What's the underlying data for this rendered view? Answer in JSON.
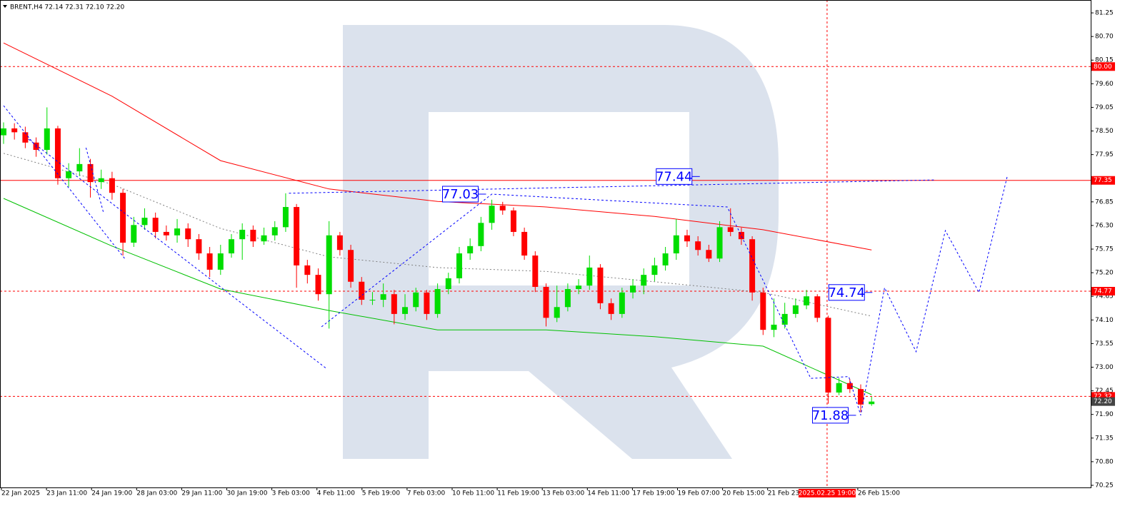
{
  "chart_data": {
    "type": "candlestick",
    "header": "BRENT,H4  72.14 72.31 72.10 72.20",
    "up_color": "#00dd00",
    "down_color": "#ff0000",
    "ylim": [
      70.2,
      81.55
    ],
    "yticks": [
      81.25,
      {
        "value": 80.7,
        "label": "80.70"
      },
      80.15,
      {
        "value": 79.6,
        "label": "79.60"
      },
      79.05,
      {
        "value": 78.5,
        "label": "78.50"
      },
      77.95,
      76.85,
      {
        "value": 76.3,
        "label": "76.30"
      },
      75.75,
      {
        "value": 75.2,
        "label": "75.20"
      },
      74.65,
      {
        "value": 74.1,
        "label": "74.10"
      },
      73.55,
      {
        "value": 73,
        "label": "73.00"
      },
      72.45,
      {
        "value": 71.9,
        "label": "71.90"
      },
      71.35,
      {
        "value": 70.8,
        "label": "70.80"
      },
      70.25
    ],
    "xtick_labels": [
      "22 Jan 2025",
      "23 Jan 11:00",
      "24 Jan 19:00",
      "28 Jan 03:00",
      "29 Jan 11:00",
      "30 Jan 19:00",
      "3 Feb 03:00",
      "4 Feb 11:00",
      "5 Feb 19:00",
      "7 Feb 03:00",
      "10 Feb 11:00",
      "11 Feb 19:00",
      "13 Feb 03:00",
      "14 Feb 11:00",
      "17 Feb 19:00",
      "19 Feb 07:00",
      "20 Feb 15:00",
      "21 Feb 23:00",
      null,
      "26 Feb 15:00"
    ],
    "ohlc": {
      "open": [
        78.4,
        78.56,
        78.47,
        78.23,
        78.06,
        78.56,
        77.4,
        77.56,
        77.73,
        77.31,
        77.4,
        77.06,
        75.9,
        76.31,
        76.48,
        76.15,
        76.07,
        76.23,
        75.98,
        75.65,
        75.27,
        75.65,
        75.98,
        76.2,
        75.93,
        76.07,
        76.26,
        76.73,
        75.37,
        75.15,
        74.7,
        76.07,
        75.73,
        74.99,
        74.57,
        74.57,
        74.7,
        74.24,
        74.4,
        74.74,
        74.24,
        74.82,
        75.07,
        75.65,
        75.82,
        76.36,
        76.76,
        76.65,
        76.15,
        75.6,
        74.87,
        74.15,
        74.4,
        74.82,
        74.9,
        75.32,
        74.49,
        74.24,
        74.74,
        74.9,
        75.15,
        75.37,
        75.65,
        76.07,
        75.93,
        75.73,
        75.53,
        76.26,
        76.15,
        75.98,
        74.74,
        73.87,
        73.99,
        74.24,
        74.44,
        74.65,
        74.15,
        72.41,
        72.63,
        72.49,
        72.14
      ],
      "high": [
        78.7,
        78.68,
        78.6,
        78.35,
        79.05,
        78.62,
        77.75,
        78.1,
        77.85,
        77.6,
        77.55,
        77.15,
        76.5,
        76.7,
        76.6,
        76.3,
        76.45,
        76.35,
        76.1,
        75.8,
        75.85,
        76.1,
        76.35,
        76.3,
        76.25,
        76.4,
        77.05,
        76.8,
        75.5,
        75.3,
        76.4,
        76.15,
        75.85,
        75.1,
        74.75,
        74.95,
        74.8,
        74.7,
        74.85,
        74.8,
        74.95,
        75.2,
        75.8,
        76.0,
        76.5,
        76.9,
        76.85,
        76.72,
        76.25,
        75.7,
        74.95,
        74.9,
        74.95,
        75.05,
        75.6,
        75.4,
        74.6,
        74.85,
        75.05,
        75.3,
        75.55,
        75.8,
        76.45,
        76.2,
        76.05,
        75.85,
        76.4,
        76.7,
        76.25,
        76.05,
        74.85,
        74.6,
        74.5,
        74.6,
        74.8,
        74.7,
        74.2,
        72.75,
        72.72,
        72.6,
        72.31
      ],
      "low": [
        78.2,
        78.3,
        78.1,
        77.9,
        77.95,
        77.25,
        77.2,
        77.45,
        76.95,
        77.15,
        76.9,
        75.6,
        75.8,
        76.2,
        76.0,
        75.95,
        75.9,
        75.8,
        75.5,
        75.1,
        75.15,
        75.55,
        75.5,
        75.8,
        75.85,
        75.95,
        76.15,
        74.85,
        74.95,
        74.55,
        73.9,
        75.6,
        74.85,
        74.45,
        74.45,
        74.4,
        74.0,
        74.1,
        74.3,
        74.1,
        74.15,
        74.7,
        74.95,
        75.5,
        75.7,
        76.2,
        76.55,
        76.05,
        75.5,
        74.75,
        73.95,
        74.05,
        74.3,
        74.7,
        74.8,
        74.35,
        74.1,
        74.15,
        74.6,
        74.7,
        75.0,
        75.25,
        75.5,
        75.8,
        75.6,
        75.45,
        75.45,
        76.05,
        75.85,
        74.55,
        73.75,
        73.7,
        73.9,
        74.15,
        74.35,
        74.05,
        72.15,
        72.35,
        72.4,
        71.95,
        72.1
      ],
      "close": [
        78.56,
        78.47,
        78.23,
        78.06,
        78.56,
        77.4,
        77.56,
        77.73,
        77.31,
        77.4,
        77.06,
        75.9,
        76.31,
        76.48,
        76.15,
        76.07,
        76.23,
        75.98,
        75.65,
        75.27,
        75.65,
        75.98,
        76.2,
        75.93,
        76.07,
        76.26,
        76.73,
        75.37,
        75.15,
        74.7,
        76.07,
        75.73,
        74.99,
        74.57,
        74.57,
        74.7,
        74.24,
        74.4,
        74.74,
        74.24,
        74.82,
        75.07,
        75.65,
        75.82,
        76.36,
        76.76,
        76.65,
        76.15,
        75.6,
        74.87,
        74.15,
        74.4,
        74.82,
        74.9,
        75.32,
        74.49,
        74.24,
        74.74,
        74.9,
        75.15,
        75.37,
        75.65,
        76.07,
        75.93,
        75.73,
        75.53,
        76.26,
        76.15,
        75.98,
        74.74,
        73.87,
        73.99,
        74.24,
        74.44,
        74.65,
        74.15,
        72.41,
        72.63,
        72.49,
        72.13,
        72.2
      ]
    },
    "series": [
      {
        "color": "#ff0000",
        "style": "solid",
        "x": [
          0,
          10,
          20,
          30,
          40,
          50,
          60,
          70,
          80
        ],
        "values": [
          80.55,
          79.31,
          77.81,
          77.15,
          76.86,
          76.73,
          76.51,
          76.2,
          75.73
        ]
      },
      {
        "color": "#00c000",
        "style": "solid",
        "x": [
          0,
          10,
          20,
          30,
          40,
          50,
          60,
          70,
          80
        ],
        "values": [
          76.93,
          75.82,
          74.82,
          74.32,
          73.87,
          73.87,
          73.71,
          73.49,
          72.36
        ]
      },
      {
        "color": "#808080",
        "style": "dotted",
        "x": [
          0,
          10,
          20,
          30,
          40,
          50,
          60,
          70,
          80
        ],
        "values": [
          77.98,
          77.26,
          76.23,
          75.57,
          75.32,
          75.23,
          74.99,
          74.74,
          74.19
        ]
      }
    ],
    "forecast": {
      "color": "#0000ff",
      "x": [
        0,
        11.2,
        null,
        7.6,
        9.2,
        null,
        2.3,
        29.8,
        null,
        26.3,
        85.9,
        null,
        29.3,
        45.0,
        66.7,
        74.4,
        77.9,
        79.0,
        80.1,
        81.2,
        84.1,
        86.8,
        89.9,
        92.5
      ],
      "values": [
        79.09,
        75.52,
        null,
        78.11,
        76.61,
        null,
        78.31,
        72.96,
        null,
        77.05,
        77.36,
        null,
        73.94,
        77.03,
        76.73,
        72.74,
        72.78,
        71.88,
        73.36,
        74.85,
        73.36,
        76.18,
        74.74,
        77.44
      ]
    },
    "annotations": [
      {
        "label": "77.44",
        "value": 77.44,
        "x": 61.8
      },
      {
        "label": "77.03",
        "value": 77.03,
        "x": 42.1
      },
      {
        "label": "74.74",
        "value": 74.74,
        "x": 77.7
      },
      {
        "label": "71.88",
        "value": 71.88,
        "x": 76.2
      }
    ],
    "levels_color": "#ff0000",
    "levels": [
      {
        "value": 80,
        "label": "80.00",
        "style": "dashed"
      },
      {
        "value": 77.35,
        "label": "77.35",
        "style": "solid"
      },
      {
        "value": 74.77,
        "label": "74.77",
        "style": "dashed"
      },
      {
        "value": 72.32,
        "label": "72.32",
        "style": "dashed"
      }
    ],
    "current_price": {
      "value": 72.2,
      "label": "72.20"
    },
    "crosshair": {
      "x": 75.9,
      "label": "2025.02.25 19:00"
    }
  }
}
